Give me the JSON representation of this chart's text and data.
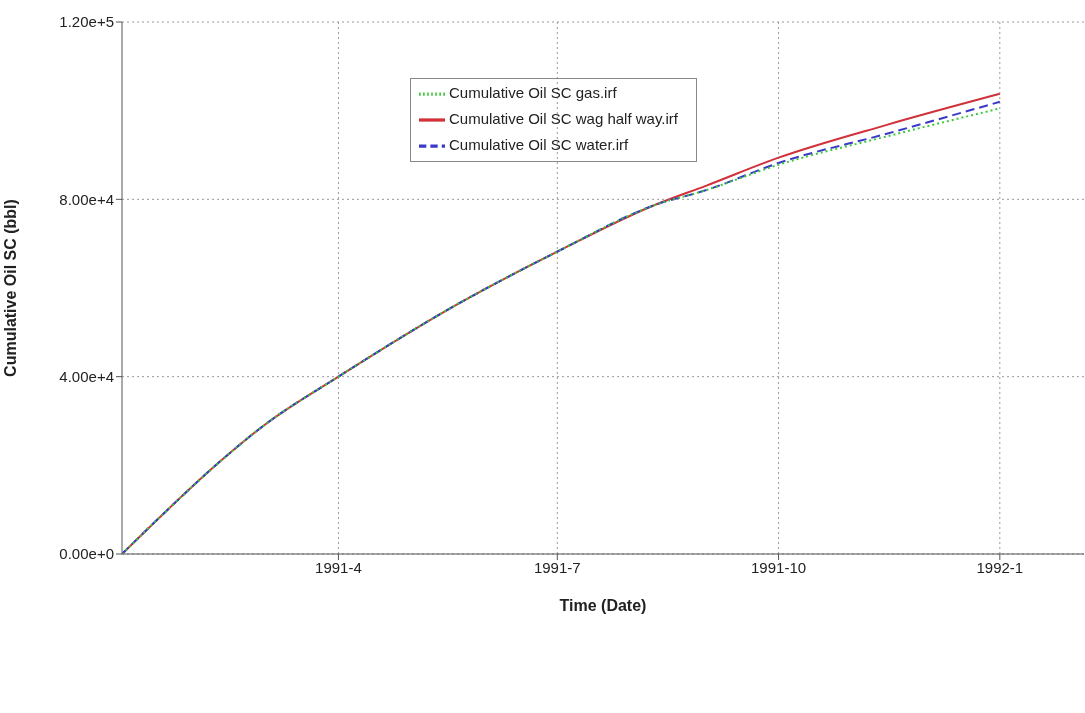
{
  "chart_data": {
    "type": "line",
    "xlabel": "Time (Date)",
    "ylabel": "Cumulative Oil SC (bbl)",
    "x": [
      "1991-01-01",
      "1991-01-20",
      "1991-02-10",
      "1991-03-01",
      "1991-04-01",
      "1991-05-20",
      "1991-07-01",
      "1991-08-10",
      "1991-09-01",
      "1991-10-01",
      "1991-11-15",
      "1992-01-01"
    ],
    "series": [
      {
        "name": "Cumulative Oil SC wag half way.irf",
        "color": "#d0313a",
        "line_style": "solid",
        "values": [
          0,
          10000,
          20500,
          29000,
          40000,
          56200,
          68200,
          78600,
          83100,
          89400,
          96800,
          103800
        ]
      },
      {
        "name": "Cumulative Oil SC water.irf",
        "color": "#3a3ac8",
        "line_style": "dashed",
        "values": [
          0,
          10000,
          20500,
          29000,
          40000,
          56200,
          68200,
          78600,
          82100,
          88200,
          94800,
          102000
        ]
      },
      {
        "name": "Cumulative Oil SC gas.irf",
        "color": "#3cc83c",
        "line_style": "dotted",
        "values": [
          0,
          10000,
          20500,
          29000,
          40000,
          56200,
          68200,
          78600,
          82100,
          87800,
          94200,
          100500
        ]
      }
    ],
    "xlim": [
      "1991-01-01",
      "1992-02-05"
    ],
    "xticks": [
      {
        "value": "1991-04-01",
        "label": "1991-4"
      },
      {
        "value": "1991-07-01",
        "label": "1991-7"
      },
      {
        "value": "1991-10-01",
        "label": "1991-10"
      },
      {
        "value": "1992-01-01",
        "label": "1992-1"
      }
    ],
    "ylim": [
      0,
      120000
    ],
    "yticks": [
      {
        "value": 0,
        "label": "0.00e+0"
      },
      {
        "value": 40000,
        "label": "4.00e+4"
      },
      {
        "value": 80000,
        "label": "8.00e+4"
      },
      {
        "value": 120000,
        "label": "1.20e+5"
      }
    ],
    "grid": true,
    "legend": "top",
    "marker": "none"
  }
}
